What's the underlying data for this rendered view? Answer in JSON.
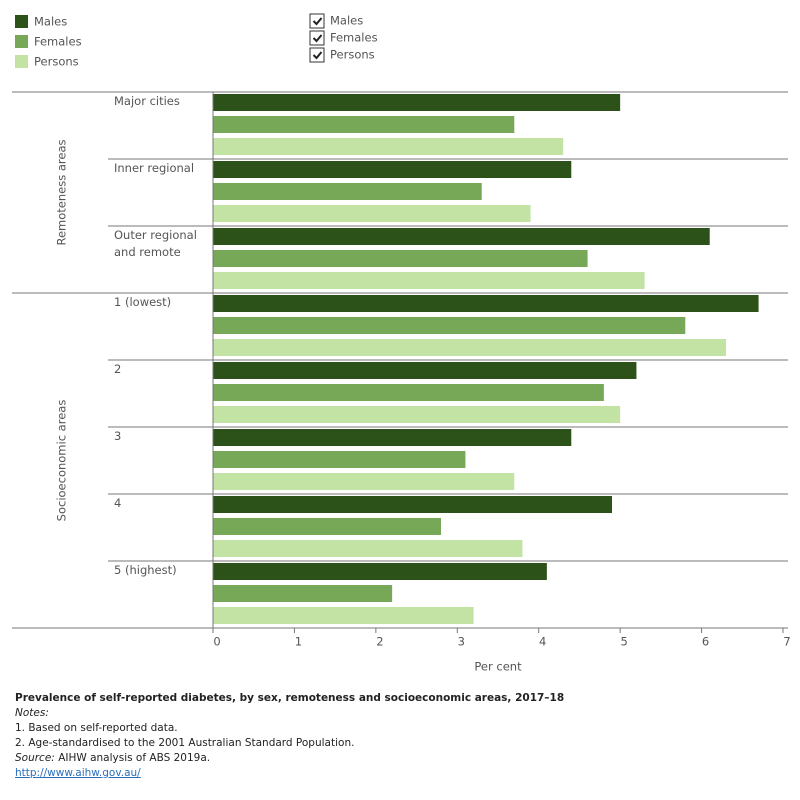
{
  "chart_data": {
    "type": "bar",
    "orientation": "horizontal",
    "groups": [
      {
        "label": "Remoteness areas",
        "categories": [
          "Major cities",
          "Inner regional",
          "Outer regional and remote"
        ]
      },
      {
        "label": "Socioeconomic areas",
        "categories": [
          "1 (lowest)",
          "2",
          "3",
          "4",
          "5 (highest)"
        ]
      }
    ],
    "series": [
      {
        "name": "Males",
        "color": "#2d5219",
        "values": [
          5.0,
          4.4,
          6.1,
          6.7,
          5.2,
          4.4,
          4.9,
          4.1
        ]
      },
      {
        "name": "Females",
        "color": "#76a858",
        "values": [
          3.7,
          3.3,
          4.6,
          5.8,
          4.8,
          3.1,
          2.8,
          2.2
        ]
      },
      {
        "name": "Persons",
        "color": "#c3e3a5",
        "values": [
          4.3,
          3.9,
          5.3,
          6.3,
          5.0,
          3.7,
          3.8,
          3.2
        ]
      }
    ],
    "xlim": [
      0,
      7
    ],
    "xticks": [
      0,
      1,
      2,
      3,
      4,
      5,
      6,
      7
    ],
    "xlabel": "Per cent",
    "legend": "top-left",
    "title": "Prevalence of self-reported diabetes, by sex, remoteness and socioeconomic areas, 2017–18",
    "notes_label": "Notes:",
    "notes": [
      "1. Based on self-reported data.",
      "2. Age-standardised to the 2001 Australian Standard Population."
    ],
    "source_label": "Source:",
    "source": "AIHW analysis of ABS 2019a.",
    "link": "http://www.aihw.gov.au/"
  }
}
